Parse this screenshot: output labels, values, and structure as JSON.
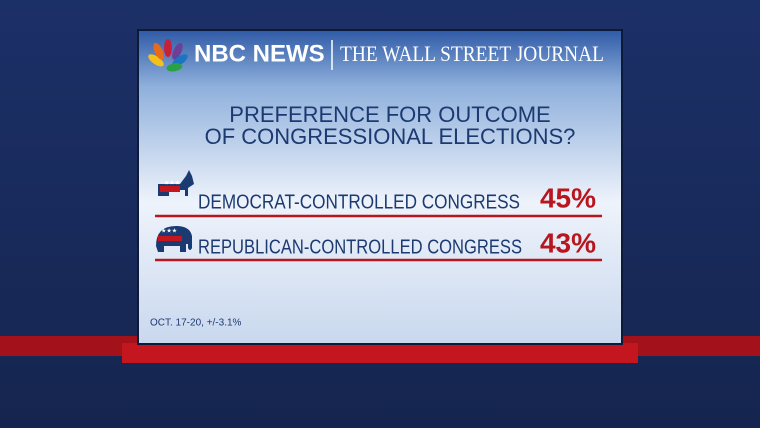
{
  "header": {
    "network": "NBC NEWS",
    "partner": "THE WALL STREET JOURNAL"
  },
  "title": [
    "PREFERENCE FOR OUTCOME",
    "OF CONGRESSIONAL ELECTIONS?"
  ],
  "rows": [
    {
      "label": "DEMOCRAT-CONTROLLED CONGRESS",
      "value": "45%"
    },
    {
      "label": "REPUBLICAN-CONTROLLED CONGRESS",
      "value": "43%"
    }
  ],
  "footnote": "OCT. 17-20, +/-3.1%"
}
